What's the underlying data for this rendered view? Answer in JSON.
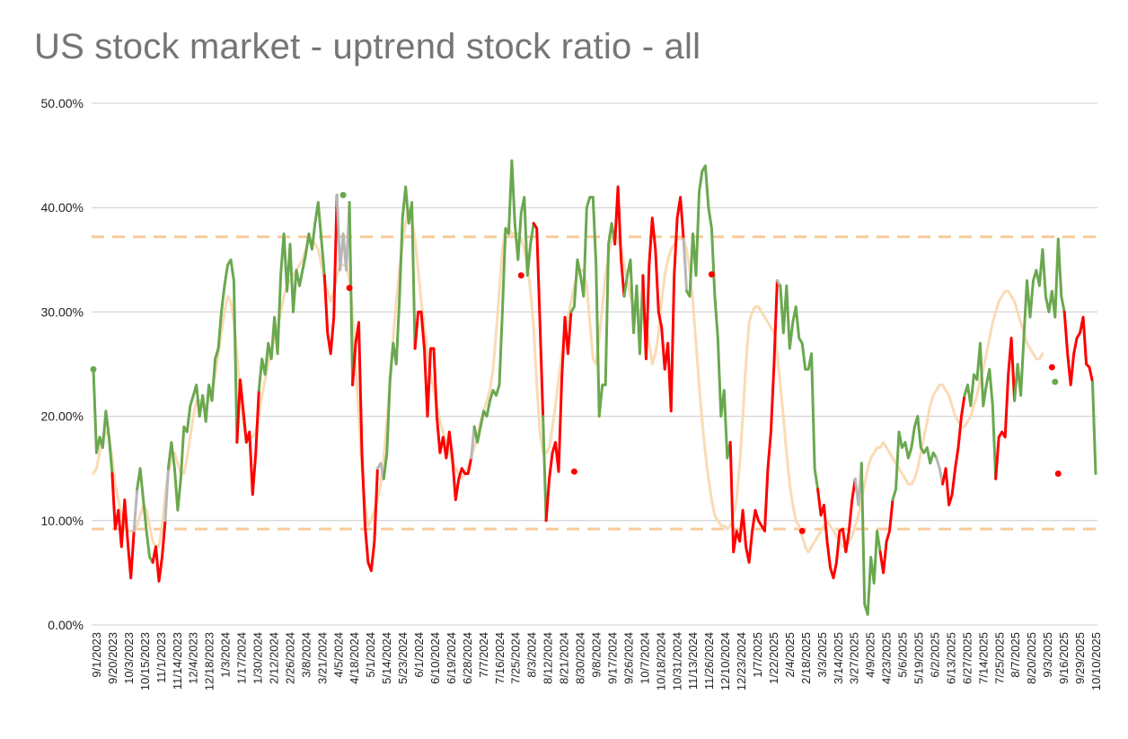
{
  "chart_data": {
    "type": "line",
    "title": "US stock market - uptrend stock ratio - all",
    "ylim": [
      0,
      50
    ],
    "y_ticks": [
      "0.00%",
      "10.00%",
      "20.00%",
      "30.00%",
      "40.00%",
      "50.00%"
    ],
    "grid": true,
    "x_tick_labels": [
      "9/1/2023",
      "9/20/2023",
      "10/3/2023",
      "10/15/2023",
      "11/1/2023",
      "11/14/2023",
      "12/4/2023",
      "12/18/2023",
      "1/3/2024",
      "1/17/2024",
      "1/30/2024",
      "2/12/2024",
      "2/26/2024",
      "3/8/2024",
      "3/21/2024",
      "4/5/2024",
      "4/18/2024",
      "5/1/2024",
      "5/14/2024",
      "5/23/2024",
      "6/1/2024",
      "6/10/2024",
      "6/19/2024",
      "6/28/2024",
      "7/7/2024",
      "7/16/2024",
      "7/25/2024",
      "8/3/2024",
      "8/12/2024",
      "8/21/2024",
      "8/30/2024",
      "9/8/2024",
      "9/17/2024",
      "9/26/2024",
      "10/7/2024",
      "10/18/2024",
      "10/31/2024",
      "11/13/2024",
      "11/26/2024",
      "12/10/2024",
      "12/23/2024",
      "1/7/2025",
      "1/22/2025",
      "2/4/2025",
      "2/18/2025",
      "3/3/2025",
      "3/14/2025",
      "3/27/2025",
      "4/9/2025",
      "4/23/2025",
      "5/6/2025",
      "5/19/2025",
      "6/2/2025",
      "6/13/2025",
      "6/27/2025",
      "7/14/2025",
      "7/25/2025",
      "8/7/2025",
      "8/20/2025",
      "9/3/2025",
      "9/16/2025",
      "9/29/2025",
      "10/10/2025"
    ],
    "reference_lines": [
      37.2,
      9.2
    ],
    "reference_line_color": "#f7cb9b",
    "colors": {
      "up": "#6aa84f",
      "down": "#ff0000",
      "neutral": "#b7b7b7",
      "smooth": "#f9dbb5",
      "grid": "#cccccc"
    },
    "series": [
      {
        "values": [
          24.5,
          16.5,
          18,
          17,
          20.5,
          18,
          14.5,
          9.2,
          11,
          7.5,
          12,
          8,
          4.5,
          9,
          13,
          15,
          12,
          9,
          6.5,
          6,
          7.5,
          4.2,
          6.5,
          10,
          15,
          17.5,
          15,
          11,
          14,
          19,
          18.5,
          21,
          22,
          23,
          20,
          22,
          19.5,
          23,
          21.5,
          25.5,
          26.5,
          30,
          32.5,
          34.5,
          35,
          33,
          17.5,
          23.5,
          20.5,
          17.5,
          18.5,
          12.5,
          16.5,
          22.5,
          25.5,
          24,
          27,
          25.5,
          29.5,
          26,
          33.5,
          37.5,
          32,
          36.5,
          30,
          34,
          32.5,
          34,
          35.5,
          37.5,
          36,
          38.5,
          40.5,
          37,
          33.5,
          28,
          26,
          29.5,
          41.2,
          34,
          37.5,
          34,
          40.5,
          23,
          27,
          29,
          16.5,
          9.5,
          6,
          5.2,
          8,
          15,
          15.5,
          14,
          16.5,
          23.5,
          27,
          25,
          31,
          39,
          42,
          38.5,
          40.5,
          26.5,
          30,
          30,
          26.5,
          20,
          26.5,
          26.5,
          20,
          16.5,
          18,
          16,
          18.5,
          16,
          12,
          14,
          15,
          14.5,
          14.5,
          16,
          19,
          17.5,
          19,
          20.5,
          20,
          21.5,
          22.5,
          22,
          23,
          30,
          38,
          37.5,
          44.5,
          38.5,
          35,
          39.5,
          41,
          33.5,
          36.5,
          38.5,
          38,
          29,
          20,
          10,
          14,
          16.5,
          17.5,
          14.7,
          23.5,
          29.5,
          26,
          30,
          30.5,
          35,
          33.5,
          31.5,
          40,
          41,
          41,
          34.5,
          20,
          23,
          23,
          36.5,
          38.5,
          36.5,
          42,
          35,
          31.5,
          33.5,
          35,
          28,
          32.5,
          26,
          33.5,
          25.5,
          34.5,
          39,
          36,
          30,
          28.5,
          24.5,
          27,
          20.5,
          33.5,
          39,
          41,
          37,
          32,
          31.5,
          37.5,
          33.5,
          41.5,
          43.5,
          44,
          40,
          38,
          31.5,
          27.5,
          20,
          22.5,
          16,
          17.5,
          7,
          9,
          8,
          11,
          7.5,
          6,
          9,
          11,
          10,
          9.5,
          9,
          15,
          18.5,
          25,
          33,
          32.5,
          28,
          32.5,
          26.5,
          29,
          30.5,
          27.5,
          27,
          24.5,
          24.5,
          26,
          15,
          13,
          10.5,
          11.5,
          8,
          5.5,
          4.5,
          6,
          9,
          9.2,
          7,
          9,
          12,
          14,
          11.5,
          15.5,
          2,
          1,
          6.5,
          4,
          9,
          7,
          5,
          8,
          9,
          12,
          13,
          18.5,
          17,
          17.5,
          16,
          17,
          19,
          20,
          17,
          16.5,
          17,
          15.5,
          16.5,
          16,
          15,
          13.5,
          15,
          11.5,
          12.5,
          15,
          17,
          20,
          22,
          23,
          21,
          24,
          23.5,
          27,
          21,
          23,
          24.5,
          21,
          14,
          18,
          18.5,
          18,
          24,
          27.5,
          21.5,
          25,
          22,
          27.5,
          33,
          29.5,
          33,
          34,
          32.5,
          36,
          31.5,
          30,
          32,
          29.5,
          37,
          31.5,
          30,
          26,
          23,
          26,
          27.5,
          28,
          29.5,
          25,
          24.7,
          23.3,
          14.5
        ],
        "colors": [
          "up",
          "up",
          "up",
          "up",
          "up",
          "up",
          "down",
          "down",
          "down",
          "down",
          "down",
          "down",
          "down",
          "neutral",
          "up",
          "up",
          "up",
          "up",
          "up",
          "down",
          "down",
          "down",
          "down",
          "neutral",
          "up",
          "up",
          "up",
          "up",
          "up",
          "up",
          "up",
          "up",
          "up",
          "up",
          "up",
          "up",
          "up",
          "up",
          "up",
          "up",
          "up",
          "up",
          "up",
          "up",
          "up",
          "up",
          "down",
          "down",
          "down",
          "down",
          "down",
          "down",
          "down",
          "up",
          "up",
          "up",
          "up",
          "up",
          "up",
          "up",
          "up",
          "up",
          "up",
          "up",
          "up",
          "up",
          "up",
          "up",
          "up",
          "up",
          "up",
          "up",
          "up",
          "up",
          "down",
          "down",
          "down",
          "down",
          "neutral",
          "neutral",
          "neutral",
          "neutral",
          "up",
          "down",
          "down",
          "down",
          "down",
          "down",
          "down",
          "down",
          "down",
          "neutral",
          "neutral",
          "up",
          "up",
          "up",
          "up",
          "up",
          "up",
          "up",
          "up",
          "up",
          "up",
          "down",
          "down",
          "down",
          "down",
          "down",
          "down",
          "down",
          "down",
          "down",
          "down",
          "down",
          "down",
          "down",
          "down",
          "down",
          "down",
          "down",
          "down",
          "neutral",
          "up",
          "up",
          "up",
          "up",
          "up",
          "up",
          "up",
          "up",
          "up",
          "up",
          "up",
          "up",
          "up",
          "up",
          "up",
          "up",
          "up",
          "up",
          "up",
          "down",
          "down",
          "down",
          "up",
          "down",
          "down",
          "down",
          "down",
          "down",
          "down",
          "down",
          "down",
          "up",
          "up",
          "up",
          "up",
          "up",
          "up",
          "up",
          "up",
          "up",
          "up",
          "up",
          "up",
          "up",
          "up",
          "down",
          "down",
          "down",
          "up",
          "up",
          "up",
          "up",
          "up",
          "up",
          "down",
          "down",
          "down",
          "down",
          "down",
          "down",
          "down",
          "down",
          "down",
          "down",
          "down",
          "down",
          "down",
          "neutral",
          "up",
          "up",
          "up",
          "up",
          "up",
          "up",
          "up",
          "up",
          "up",
          "up",
          "up",
          "up",
          "up",
          "up",
          "down",
          "down",
          "down",
          "down",
          "down",
          "down",
          "down",
          "down",
          "down",
          "down",
          "down",
          "down",
          "down",
          "down",
          "down",
          "neutral",
          "up",
          "up",
          "up",
          "up",
          "up",
          "up",
          "up",
          "up",
          "up",
          "up",
          "up",
          "up",
          "down",
          "down",
          "down",
          "down",
          "down",
          "down",
          "down",
          "down",
          "down",
          "down",
          "down",
          "down",
          "neutral",
          "neutral",
          "up",
          "up",
          "up",
          "up",
          "up",
          "up",
          "down",
          "down",
          "down",
          "down",
          "up",
          "up",
          "up",
          "up",
          "up",
          "up",
          "up",
          "up",
          "up",
          "up",
          "up",
          "up",
          "up",
          "up",
          "neutral",
          "neutral",
          "down",
          "down",
          "down",
          "down",
          "down",
          "down",
          "down",
          "up",
          "up",
          "up",
          "up",
          "up",
          "up",
          "up",
          "up",
          "up",
          "up",
          "down",
          "down",
          "down",
          "down",
          "down",
          "down",
          "up",
          "up",
          "up",
          "up",
          "up",
          "up",
          "up",
          "up",
          "up",
          "up",
          "up",
          "up",
          "up",
          "up",
          "up",
          "up",
          "down",
          "down",
          "down",
          "down",
          "down",
          "down",
          "down",
          "down",
          "down",
          "up",
          "down"
        ],
        "smooth": [
          14.5,
          15,
          16.5,
          18,
          18.5,
          18,
          16,
          13.5,
          12,
          10.5,
          9.5,
          9,
          9,
          9,
          9.5,
          10.5,
          11.5,
          11,
          9.5,
          8,
          7.5,
          7.5,
          9.5,
          12.5,
          14.5,
          16,
          16.5,
          15.5,
          14.5,
          14.5,
          16,
          18,
          20,
          21.5,
          21.5,
          21,
          21,
          21.5,
          22.5,
          24,
          26,
          28,
          30,
          31.5,
          31,
          29,
          26,
          22,
          19.5,
          17.5,
          18,
          18,
          18.5,
          20,
          22,
          23.5,
          25,
          26.5,
          27.5,
          28.5,
          30,
          31.5,
          32.5,
          33,
          33.5,
          34,
          34.5,
          35,
          36,
          37,
          37,
          36.5,
          36,
          34.5,
          33,
          32,
          31,
          32,
          33.5,
          34.5,
          34.5,
          34.5,
          33,
          30,
          25,
          20,
          15,
          11.5,
          9.5,
          10,
          11,
          12,
          13.5,
          16,
          19.5,
          23.5,
          27.5,
          31,
          34,
          36.5,
          38.5,
          40,
          39,
          37,
          34,
          31,
          28.5,
          26,
          24,
          22.5,
          21,
          19.5,
          18.5,
          17.5,
          16.5,
          15.5,
          15,
          14.5,
          14,
          14.5,
          15,
          16,
          17,
          18,
          19.5,
          20.5,
          21.5,
          22.5,
          24.5,
          28,
          32,
          36,
          38,
          38,
          37.5,
          37.5,
          37.5,
          37,
          36,
          34.5,
          32,
          28.5,
          23,
          18.5,
          16.5,
          16.5,
          17,
          19,
          21,
          23.5,
          26,
          28,
          29.5,
          31,
          32.5,
          33.5,
          34,
          34,
          32.5,
          29,
          25.5,
          25,
          27.5,
          30.5,
          33.5,
          35.5,
          37,
          37.5,
          37,
          36,
          34.5,
          33,
          31.5,
          30.5,
          30.5,
          30,
          29.5,
          28.5,
          27,
          25,
          26,
          28,
          31,
          33.5,
          35,
          36,
          36.5,
          37,
          37,
          37,
          36,
          34,
          31,
          27,
          23,
          19.5,
          16.5,
          14,
          12,
          10.5,
          10,
          9.5,
          9.5,
          9.2,
          9.5,
          10.5,
          12,
          15.5,
          20,
          25,
          29,
          30,
          30.5,
          30.5,
          30,
          29.5,
          29,
          28.5,
          28,
          26,
          23,
          20,
          16.5,
          13.5,
          11.5,
          10,
          9.5,
          8.5,
          7.5,
          7,
          7.5,
          8,
          8.5,
          9,
          9.5,
          10,
          9.5,
          9,
          8.5,
          8,
          7.5,
          7.5,
          8,
          8.5,
          9.5,
          10.5,
          12,
          13.5,
          15,
          16,
          16.5,
          17,
          17,
          17.5,
          17,
          16.5,
          16,
          15.5,
          15,
          14.5,
          14,
          13.5,
          13.5,
          14,
          15,
          16.5,
          18,
          19.5,
          21,
          22,
          22.5,
          23,
          23,
          22.5,
          22,
          21,
          20,
          19.5,
          19,
          19,
          19.5,
          20,
          21,
          22,
          23.5,
          24.5,
          26,
          27.5,
          29,
          30,
          31,
          31.5,
          32,
          32,
          31.5,
          31,
          30,
          29,
          28,
          27,
          26.5,
          26,
          25.5,
          25.5,
          26
        ]
      }
    ],
    "markers": [
      {
        "index": 0,
        "y": 24.5,
        "color": "up"
      },
      {
        "index": 80,
        "y": 41.2,
        "color": "up"
      },
      {
        "index": 82,
        "y": 32.3,
        "color": "down"
      },
      {
        "index": 137,
        "y": 33.5,
        "color": "down"
      },
      {
        "index": 154,
        "y": 14.7,
        "color": "down"
      },
      {
        "index": 198,
        "y": 33.6,
        "color": "down"
      },
      {
        "index": 227,
        "y": 9.0,
        "color": "down"
      },
      {
        "index": 307,
        "y": 24.7,
        "color": "down"
      },
      {
        "index": 308,
        "y": 23.3,
        "color": "up"
      },
      {
        "index": 309,
        "y": 14.5,
        "color": "down"
      }
    ]
  }
}
